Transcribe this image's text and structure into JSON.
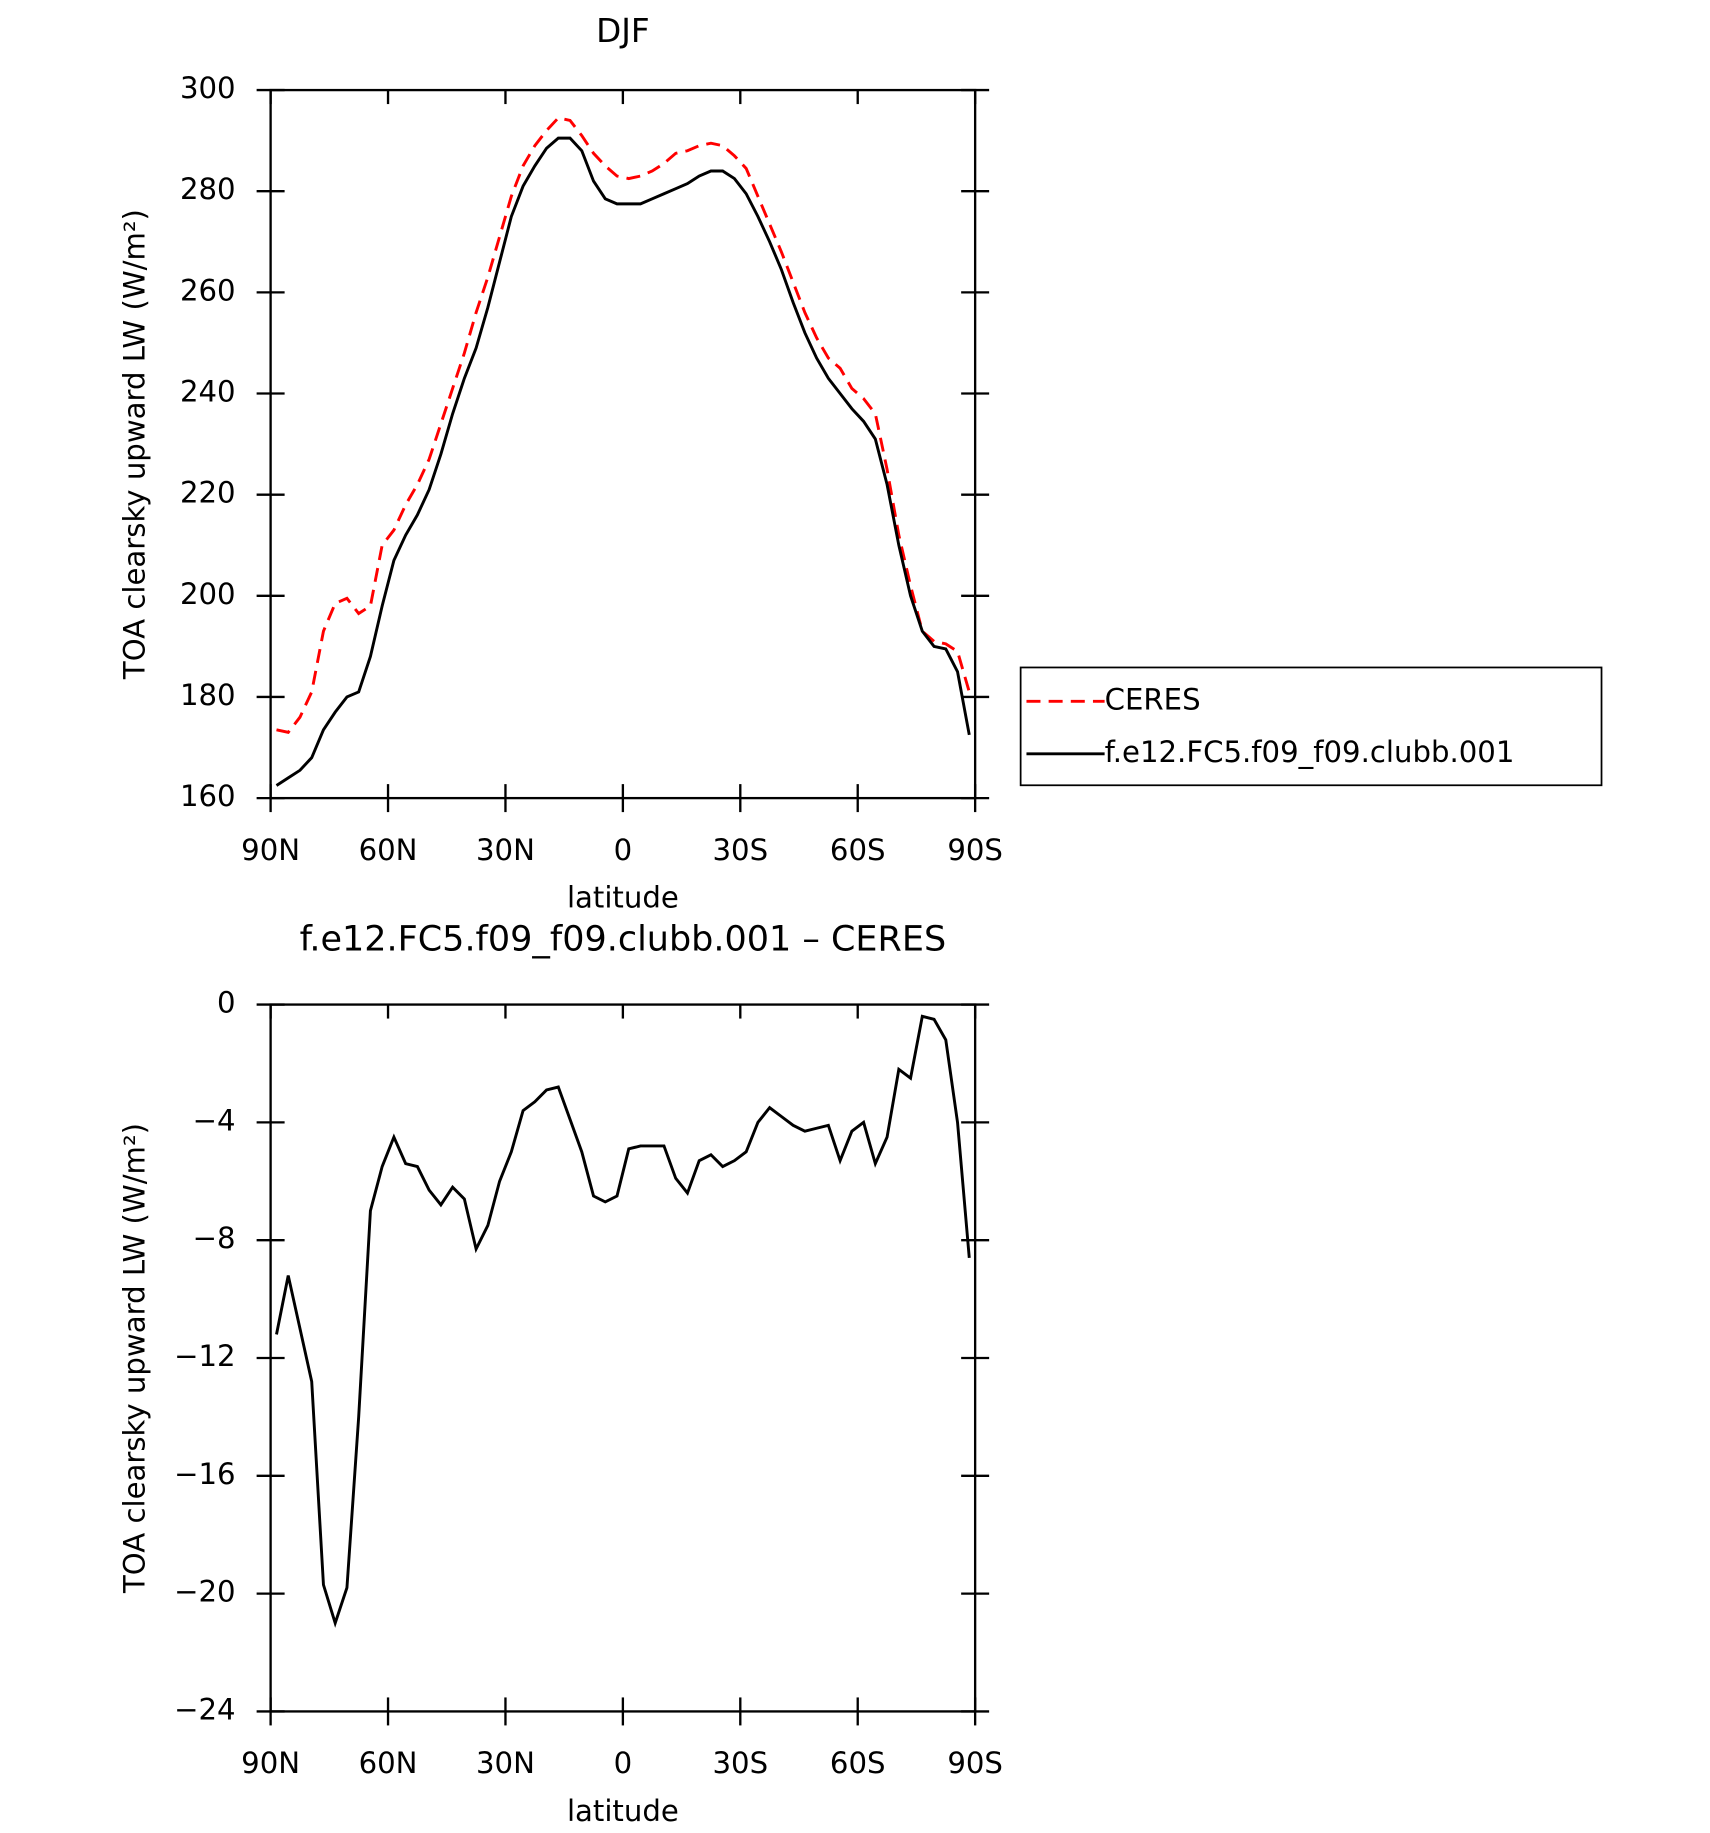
{
  "chart_data": [
    {
      "type": "line",
      "title": "DJF",
      "x_label": "latitude",
      "y_label": "TOA clearsky upward LW (W/m²)",
      "x": [
        88.5,
        85.5,
        82.5,
        79.5,
        76.5,
        73.5,
        70.5,
        67.5,
        64.5,
        61.5,
        58.5,
        55.5,
        52.5,
        49.5,
        46.5,
        43.5,
        40.5,
        37.5,
        34.5,
        31.5,
        28.5,
        25.5,
        22.5,
        19.5,
        16.5,
        13.5,
        10.5,
        7.5,
        4.5,
        1.5,
        -1.5,
        -4.5,
        -7.5,
        -10.5,
        -13.5,
        -16.5,
        -19.5,
        -22.5,
        -25.5,
        -28.5,
        -31.5,
        -34.5,
        -37.5,
        -40.5,
        -43.5,
        -46.5,
        -49.5,
        -52.5,
        -55.5,
        -58.5,
        -61.5,
        -64.5,
        -67.5,
        -70.5,
        -73.5,
        -76.5,
        -79.5,
        -82.5,
        -85.5,
        -88.5
      ],
      "series": [
        {
          "name": "CERES",
          "color": "#ff0000",
          "line_style": "dashed",
          "values": [
            173.5,
            173,
            176,
            181,
            193,
            198.5,
            199.5,
            196.5,
            198,
            210,
            213,
            218,
            222,
            227,
            234,
            241,
            248,
            256,
            263,
            271,
            279,
            285,
            289,
            292,
            294.5,
            294,
            291,
            287.5,
            285,
            283,
            282.5,
            283,
            284,
            285.5,
            287.5,
            288,
            289,
            289.5,
            289,
            287,
            284.5,
            279,
            273.5,
            268,
            262,
            256,
            251,
            247,
            245,
            241,
            239,
            236,
            225,
            212,
            202,
            193,
            191,
            190.5,
            189,
            181
          ]
        },
        {
          "name": "f.e12.FC5.f09_f09.clubb.001",
          "color": "#000000",
          "line_style": "solid",
          "values": [
            162.5,
            164,
            165.5,
            168,
            173.5,
            177,
            180,
            181,
            188,
            198,
            207,
            212,
            216,
            221,
            228,
            236,
            243,
            249,
            257,
            266,
            275,
            281,
            285,
            288.5,
            290.5,
            290.5,
            288,
            282,
            278.5,
            277.5,
            277.5,
            277.5,
            278.5,
            279.5,
            280.5,
            281.5,
            283,
            284,
            284,
            282.5,
            279.5,
            275,
            270,
            264.5,
            258,
            252,
            247,
            243,
            240,
            237,
            234.5,
            231,
            222,
            210,
            200,
            193,
            190,
            189.5,
            185,
            172.5
          ]
        }
      ],
      "xlim": [
        90,
        -90
      ],
      "xticks": [
        {
          "value": 90,
          "label": "90N"
        },
        {
          "value": 60,
          "label": "60N"
        },
        {
          "value": 30,
          "label": "30N"
        },
        0,
        {
          "value": -30,
          "label": "30S"
        },
        {
          "value": -60,
          "label": "60S"
        },
        {
          "value": -90,
          "label": "90S"
        }
      ],
      "ylim": [
        160,
        300
      ],
      "yticks": [
        160,
        180,
        200,
        220,
        240,
        260,
        280,
        300
      ],
      "legend": "right"
    },
    {
      "type": "line",
      "title": "f.e12.FC5.f09_f09.clubb.001 – CERES",
      "x_label": "latitude",
      "y_label": "TOA clearsky upward LW (W/m²)",
      "x": [
        88.5,
        85.5,
        82.5,
        79.5,
        76.5,
        73.5,
        70.5,
        67.5,
        64.5,
        61.5,
        58.5,
        55.5,
        52.5,
        49.5,
        46.5,
        43.5,
        40.5,
        37.5,
        34.5,
        31.5,
        28.5,
        25.5,
        22.5,
        19.5,
        16.5,
        13.5,
        10.5,
        7.5,
        4.5,
        1.5,
        -1.5,
        -4.5,
        -7.5,
        -10.5,
        -13.5,
        -16.5,
        -19.5,
        -22.5,
        -25.5,
        -28.5,
        -31.5,
        -34.5,
        -37.5,
        -40.5,
        -43.5,
        -46.5,
        -49.5,
        -52.5,
        -55.5,
        -58.5,
        -61.5,
        -64.5,
        -67.5,
        -70.5,
        -73.5,
        -76.5,
        -79.5,
        -82.5,
        -85.5,
        -88.5
      ],
      "color": "#000000",
      "values": [
        -11.2,
        -9.2,
        -11,
        -12.8,
        -19.7,
        -21,
        -19.8,
        -14,
        -7,
        -5.5,
        -4.5,
        -5.4,
        -5.5,
        -6.3,
        -6.8,
        -6.2,
        -6.6,
        -8.3,
        -7.5,
        -6,
        -5,
        -3.6,
        -3.3,
        -2.9,
        -2.8,
        -3.9,
        -5,
        -6.5,
        -6.7,
        -6.5,
        -4.9,
        -4.8,
        -4.8,
        -4.8,
        -5.9,
        -6.4,
        -5.3,
        -5.1,
        -5.5,
        -5.3,
        -5,
        -4,
        -3.5,
        -3.8,
        -4.1,
        -4.3,
        -4.2,
        -4.1,
        -5.3,
        -4.3,
        -4,
        -5.4,
        -4.5,
        -2.2,
        -2.5,
        -0.4,
        -0.5,
        -1.2,
        -4,
        -8.6
      ],
      "xlim": [
        90,
        -90
      ],
      "xticks": [
        {
          "value": 90,
          "label": "90N"
        },
        {
          "value": 60,
          "label": "60N"
        },
        {
          "value": 30,
          "label": "30N"
        },
        0,
        {
          "value": -30,
          "label": "30S"
        },
        {
          "value": -60,
          "label": "60S"
        },
        {
          "value": -90,
          "label": "90S"
        }
      ],
      "ylim": [
        -24,
        0
      ],
      "yticks": [
        {
          "value": -24,
          "label": "−24"
        },
        {
          "value": -20,
          "label": "−20"
        },
        {
          "value": -16,
          "label": "−16"
        },
        {
          "value": -12,
          "label": "−12"
        },
        {
          "value": -8,
          "label": "−8"
        },
        {
          "value": -4,
          "label": "−4"
        },
        0
      ]
    }
  ]
}
